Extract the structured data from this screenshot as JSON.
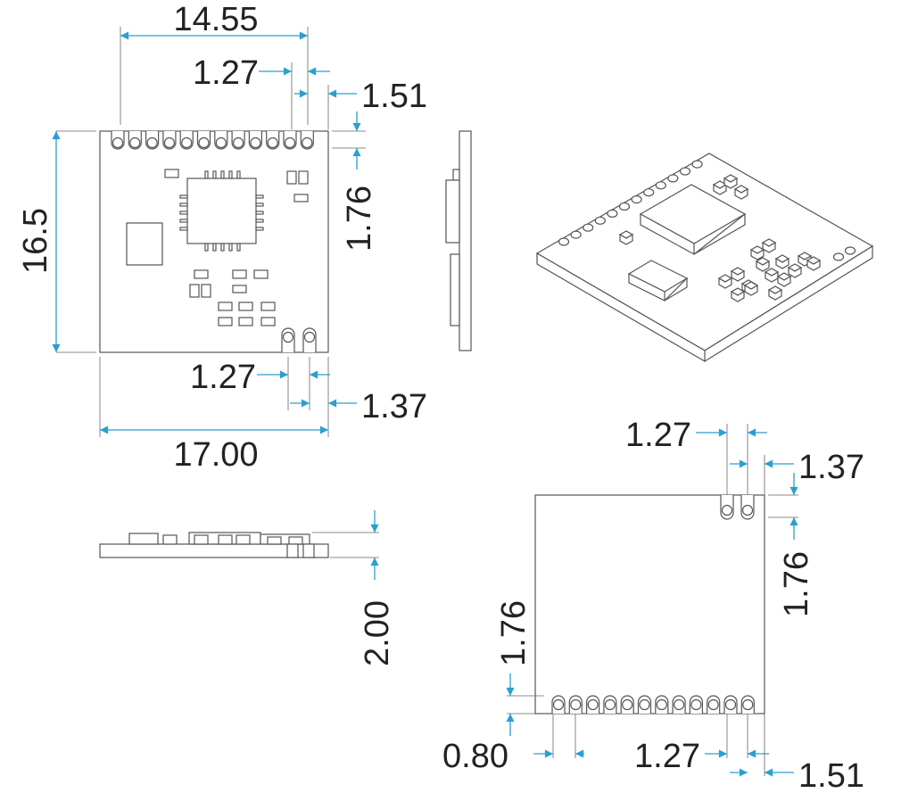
{
  "colors": {
    "dimension": "#2a9fd0",
    "outline": "#555555"
  },
  "top_view": {
    "dims": {
      "width_pins": "14.55",
      "pitch_top": "1.27",
      "edge_top": "1.51",
      "pad_depth": "1.76",
      "height": "16.5",
      "pitch_bottom": "1.27",
      "edge_bottom": "1.37",
      "width": "17.00"
    }
  },
  "side_view": {
    "dims": {
      "thickness": "2.00"
    }
  },
  "bottom_view": {
    "dims": {
      "pitch_top": "1.27",
      "edge_top": "1.37",
      "pad_depth_right": "1.76",
      "pad_depth_left": "1.76",
      "pad_width": "0.80",
      "pitch_bottom": "1.27",
      "edge_bottom": "1.51"
    }
  }
}
